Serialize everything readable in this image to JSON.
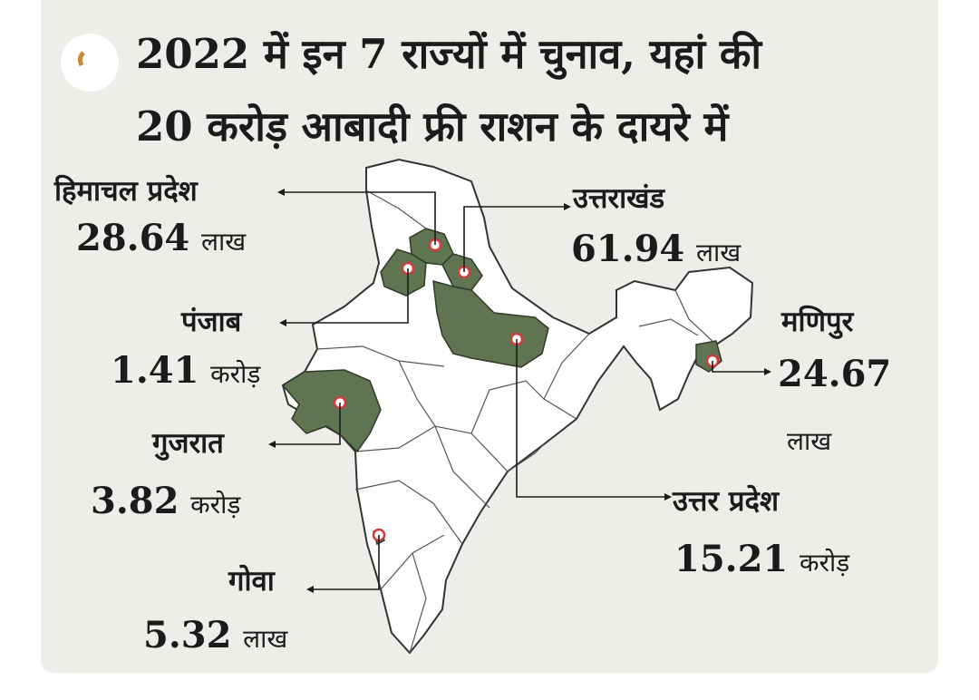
{
  "title": {
    "line1": "2022 में इन 7 राज्यों में चुनाव, यहां की",
    "line2": "20 करोड़ आबादी फ्री राशन के दायरे में"
  },
  "states": [
    {
      "key": "himachal",
      "name": "हिमाचल प्रदेश",
      "value": "28.64",
      "unit": "लाख"
    },
    {
      "key": "uttarakhand",
      "name": "उत्तराखंड",
      "value": "61.94",
      "unit": "लाख"
    },
    {
      "key": "punjab",
      "name": "पंजाब",
      "value": "1.41",
      "unit": "करोड़"
    },
    {
      "key": "manipur",
      "name": "मणिपुर",
      "value": "24.67",
      "unit": "लाख"
    },
    {
      "key": "gujarat",
      "name": "गुजरात",
      "value": "3.82",
      "unit": "करोड़"
    },
    {
      "key": "up",
      "name": "उत्तर प्रदेश",
      "value": "15.21",
      "unit": "करोड़"
    },
    {
      "key": "goa",
      "name": "गोवा",
      "value": "5.32",
      "unit": "लाख"
    }
  ],
  "colors": {
    "highlight": "#5f7551",
    "map_fill": "#ffffff",
    "outline": "#333333",
    "background": "#efede9",
    "marker": "#d23c3c"
  }
}
